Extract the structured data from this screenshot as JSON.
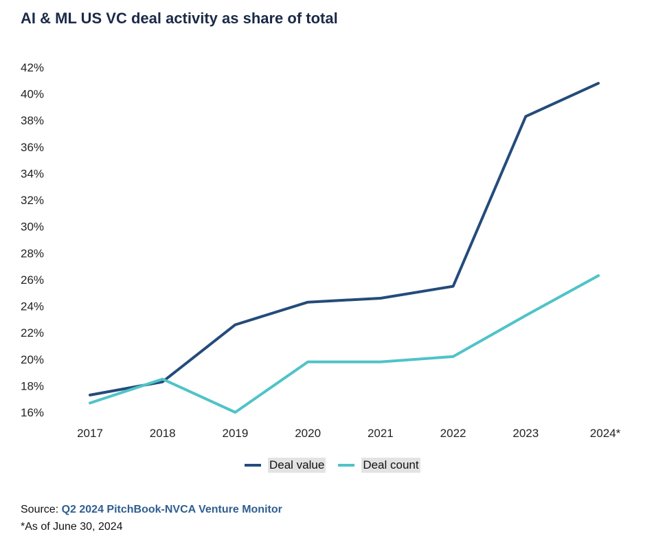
{
  "title": "AI & ML US VC deal activity as share of total",
  "chart_data": {
    "type": "line",
    "title": "AI & ML US VC deal activity as share of total",
    "categories": [
      "2017",
      "2018",
      "2019",
      "2020",
      "2021",
      "2022",
      "2023",
      "2024*"
    ],
    "series": [
      {
        "name": "Deal value",
        "color": "#244b7a",
        "values": [
          17.3,
          18.3,
          22.6,
          24.3,
          24.6,
          25.5,
          38.3,
          40.8
        ]
      },
      {
        "name": "Deal count",
        "color": "#4fc3c7",
        "values": [
          16.7,
          18.5,
          16.0,
          19.8,
          19.8,
          20.2,
          23.3,
          26.3
        ]
      }
    ],
    "ylim": [
      16,
      42
    ],
    "yticks": [
      16,
      18,
      20,
      22,
      24,
      26,
      28,
      30,
      32,
      34,
      36,
      38,
      40,
      42
    ],
    "ytick_labels": [
      "16%",
      "18%",
      "20%",
      "22%",
      "24%",
      "26%",
      "28%",
      "30%",
      "32%",
      "34%",
      "36%",
      "38%",
      "40%",
      "42%"
    ],
    "xlabel": "",
    "ylabel": "",
    "grid": false,
    "legend": "bottom-center"
  },
  "legend": [
    {
      "label": "Deal value",
      "color": "#244b7a"
    },
    {
      "label": "Deal count",
      "color": "#4fc3c7"
    }
  ],
  "footer": {
    "source_prefix": "Source: ",
    "source_link": "Q2 2024 PitchBook-NVCA Venture Monitor",
    "note": "*As of June 30, 2024"
  }
}
